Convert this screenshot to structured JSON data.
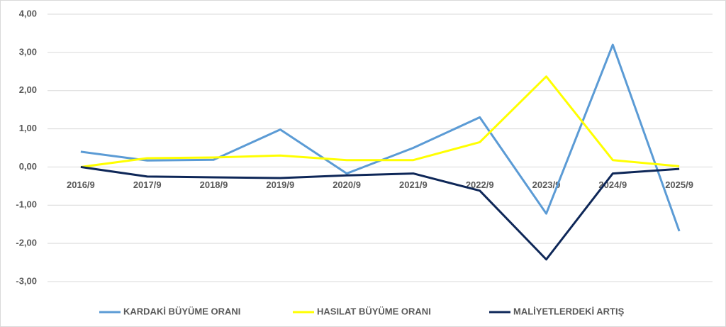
{
  "chart_data": {
    "type": "line",
    "categories": [
      "2016/9",
      "2017/9",
      "2018/9",
      "2019/9",
      "2020/9",
      "2021/9",
      "2022/9",
      "2023/9",
      "2024/9",
      "2025/9"
    ],
    "series": [
      {
        "name": "KARDAKİ BÜYÜME ORANI",
        "color": "#5b9bd5",
        "values": [
          0.4,
          0.17,
          0.19,
          0.98,
          -0.17,
          0.5,
          1.3,
          -1.22,
          3.2,
          -1.68
        ]
      },
      {
        "name": "HASILAT BÜYÜME ORANI",
        "color": "#ffff00",
        "values": [
          0.0,
          0.23,
          0.25,
          0.3,
          0.18,
          0.18,
          0.65,
          2.37,
          0.18,
          0.02
        ]
      },
      {
        "name": "MALİYETLERDEKİ ARTIŞ",
        "color": "#0e2758",
        "values": [
          0.0,
          -0.25,
          -0.27,
          -0.29,
          -0.22,
          -0.17,
          -0.62,
          -2.42,
          -0.17,
          -0.05
        ]
      }
    ],
    "ylim": [
      -3,
      4
    ],
    "yticks": [
      {
        "value": -3,
        "label": "-3,00"
      },
      {
        "value": -2,
        "label": "-2,00"
      },
      {
        "value": -1,
        "label": "-1,00"
      },
      {
        "value": 0,
        "label": "0,00"
      },
      {
        "value": 1,
        "label": "1,00"
      },
      {
        "value": 2,
        "label": "2,00"
      },
      {
        "value": 3,
        "label": "3,00"
      },
      {
        "value": 4,
        "label": "4,00"
      }
    ],
    "grid": true,
    "legend": "bottom"
  }
}
